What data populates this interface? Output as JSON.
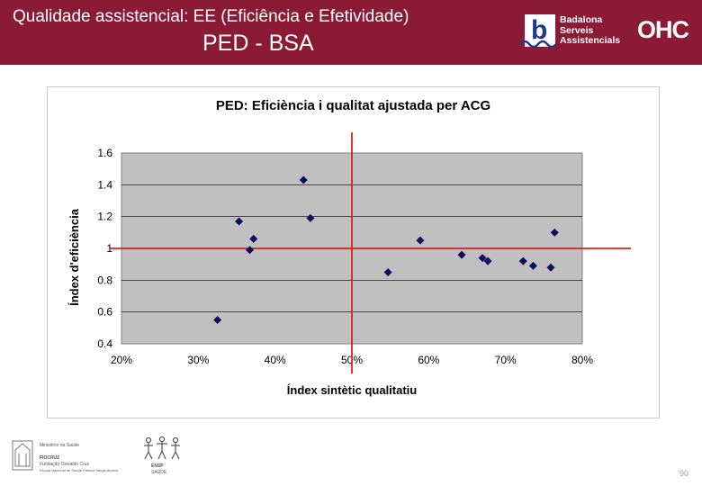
{
  "slide": {
    "title": "Qualidade assistencial:  EE (Eficiência e Efetividade)",
    "subtitle": "PED - BSA",
    "page_number": "90"
  },
  "logos": {
    "bsa_letter": "b",
    "bsa_text": "Badalona\nServeis\nAssistencials",
    "ohc_text": "OHC",
    "footer_left_lines": [
      "Ministério da Saúde",
      "FIOCRUZ",
      "Fundação Oswaldo Cruz",
      "Escola Nacional de Saúde Pública Sergio Arouca"
    ],
    "footer_mid_lines": [
      "ENSP",
      "SAÚDE"
    ]
  },
  "colors": {
    "header": "#8b1a34",
    "plot_bg": "#c0c0c0",
    "marker": "#0d0d5e",
    "reference_line": "#e02020"
  },
  "chart_data": {
    "type": "scatter",
    "title": "PED: Eficiència i qualitat ajustada per ACG",
    "xlabel": "Índex sintètic qualitatiu",
    "ylabel": "Índex d'eficiència",
    "xlim": [
      0.2,
      0.8
    ],
    "ylim": [
      0.4,
      1.6
    ],
    "xticks": [
      0.2,
      0.3,
      0.4,
      0.5,
      0.6,
      0.7,
      0.8
    ],
    "xtick_labels": [
      "20%",
      "30%",
      "40%",
      "50%",
      "60%",
      "70%",
      "80%"
    ],
    "yticks": [
      0.4,
      0.6,
      0.8,
      1,
      1.2,
      1.4,
      1.6
    ],
    "ytick_labels": [
      "0.4",
      "0.6",
      "0.8",
      "1",
      "1.2",
      "1.4",
      "1.6"
    ],
    "reference_x": 0.5,
    "reference_y": 1.0,
    "grid": "horizontal",
    "legend": "none",
    "points": [
      {
        "x": 0.325,
        "y": 0.55
      },
      {
        "x": 0.353,
        "y": 1.17
      },
      {
        "x": 0.367,
        "y": 0.99
      },
      {
        "x": 0.372,
        "y": 1.06
      },
      {
        "x": 0.437,
        "y": 1.43
      },
      {
        "x": 0.446,
        "y": 1.19
      },
      {
        "x": 0.547,
        "y": 0.85
      },
      {
        "x": 0.589,
        "y": 1.05
      },
      {
        "x": 0.643,
        "y": 0.96
      },
      {
        "x": 0.67,
        "y": 0.94
      },
      {
        "x": 0.677,
        "y": 0.92
      },
      {
        "x": 0.723,
        "y": 0.92
      },
      {
        "x": 0.736,
        "y": 0.89
      },
      {
        "x": 0.759,
        "y": 0.88
      },
      {
        "x": 0.764,
        "y": 1.1
      }
    ]
  }
}
